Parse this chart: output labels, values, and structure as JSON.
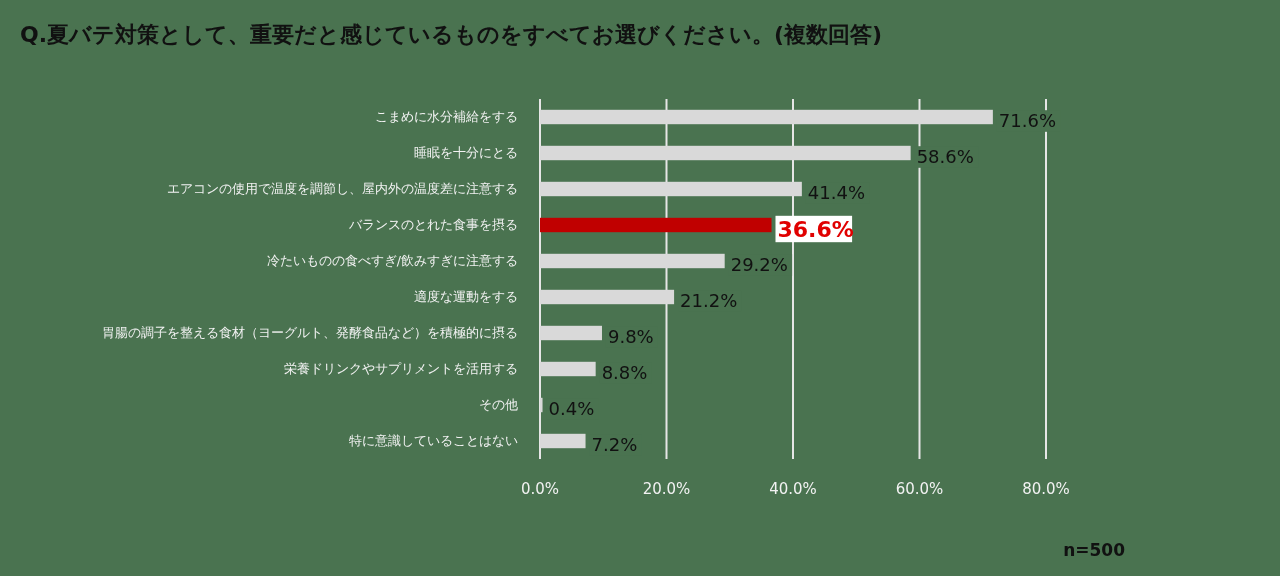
{
  "chart_data": {
    "type": "bar",
    "orientation": "horizontal",
    "title": "Q.夏バテ対策として、重要だと感じているものをすべてお選びください。(複数回答)",
    "categories": [
      "こまめに水分補給をする",
      "睡眠を十分にとる",
      "エアコンの使用で温度を調節し、屋内外の温度差に注意する",
      "バランスのとれた食事を摂る",
      "冷たいものの食べすぎ/飲みすぎに注意する",
      "適度な運動をする",
      "胃腸の調子を整える食材（ヨーグルト、発酵食品など）を積極的に摂る",
      "栄養ドリンクやサプリメントを活用する",
      "その他",
      "特に意識していることはない"
    ],
    "values": [
      71.6,
      58.6,
      41.4,
      36.6,
      29.2,
      21.2,
      9.8,
      8.8,
      0.4,
      7.2
    ],
    "colors": [
      "#d9d9d9",
      "#d9d9d9",
      "#d9d9d9",
      "#c00000",
      "#d9d9d9",
      "#d9d9d9",
      "#d9d9d9",
      "#d9d9d9",
      "#d9d9d9",
      "#d9d9d9"
    ],
    "value_labels": [
      "71.6%",
      "58.6%",
      "41.4%",
      "36.6%",
      "29.2%",
      "21.2%",
      "9.8%",
      "8.8%",
      "0.4%",
      "7.2%"
    ],
    "xlim": [
      0,
      80
    ],
    "xticks": [
      {
        "value": 0,
        "label": "0.0%"
      },
      {
        "value": 20,
        "label": "20.0%"
      },
      {
        "value": 40,
        "label": "40.0%"
      },
      {
        "value": 60,
        "label": "60.0%"
      },
      {
        "value": 80,
        "label": "80.0%"
      }
    ],
    "grid": "x",
    "annotations": [
      "n=500"
    ]
  }
}
